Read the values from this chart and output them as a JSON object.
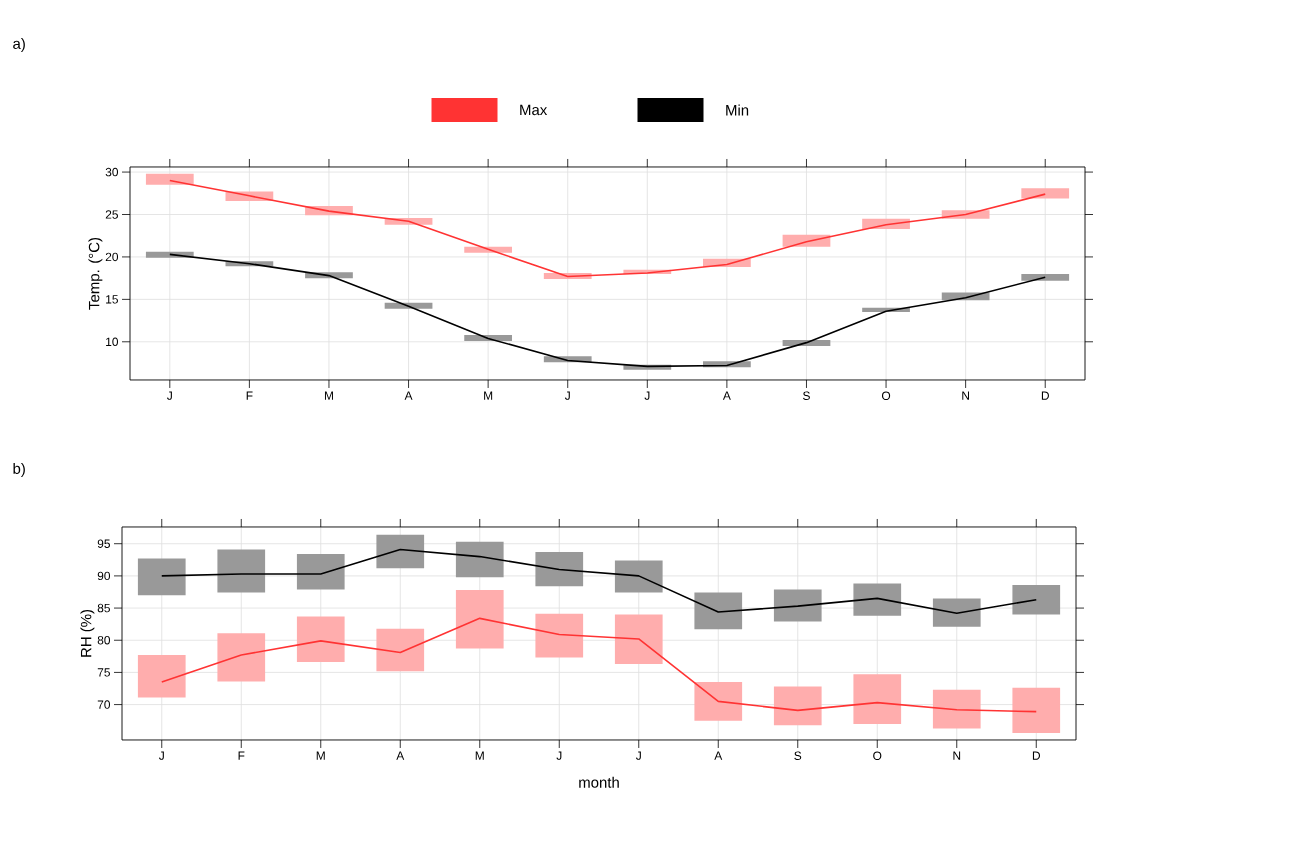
{
  "chart_data": [
    {
      "type": "line",
      "title": "a)",
      "ylabel": "Temp. (°C)",
      "categories": [
        "J",
        "F",
        "M",
        "A",
        "M",
        "J",
        "J",
        "A",
        "S",
        "O",
        "N",
        "D"
      ],
      "ylim": [
        5.5,
        30.6
      ],
      "yticks": [
        10,
        15,
        20,
        25,
        30
      ],
      "grid": true,
      "legend": "top",
      "line_style": "solid",
      "series": [
        {
          "name": "Max",
          "color": "#ff3333",
          "values": [
            29.0,
            27.2,
            25.4,
            24.2,
            20.9,
            17.7,
            18.1,
            19.1,
            21.8,
            23.8,
            25.0,
            27.4
          ],
          "errors": [
            [
              28.5,
              29.8
            ],
            [
              26.6,
              27.7
            ],
            [
              24.9,
              26.0
            ],
            [
              23.8,
              24.6
            ],
            [
              20.5,
              21.2
            ],
            [
              17.4,
              18.1
            ],
            [
              18.0,
              18.5
            ],
            [
              18.8,
              19.8
            ],
            [
              21.2,
              22.6
            ],
            [
              23.3,
              24.5
            ],
            [
              24.5,
              25.5
            ],
            [
              26.9,
              28.1
            ]
          ]
        },
        {
          "name": "Min",
          "color": "#000000",
          "values": [
            20.3,
            19.2,
            17.8,
            14.2,
            10.4,
            7.8,
            7.1,
            7.2,
            9.9,
            13.6,
            15.2,
            17.6
          ],
          "errors": [
            [
              19.9,
              20.6
            ],
            [
              18.9,
              19.5
            ],
            [
              17.5,
              18.2
            ],
            [
              13.9,
              14.6
            ],
            [
              10.1,
              10.8
            ],
            [
              7.6,
              8.3
            ],
            [
              6.7,
              7.3
            ],
            [
              7.0,
              7.7
            ],
            [
              9.5,
              10.2
            ],
            [
              13.5,
              14.0
            ],
            [
              14.9,
              15.8
            ],
            [
              17.2,
              18.0
            ]
          ]
        }
      ]
    },
    {
      "type": "line",
      "title": "b)",
      "xlabel": "month",
      "ylabel": "RH (%)",
      "categories": [
        "J",
        "F",
        "M",
        "A",
        "M",
        "J",
        "J",
        "A",
        "S",
        "O",
        "N",
        "D"
      ],
      "ylim": [
        64.5,
        97.6
      ],
      "yticks": [
        70,
        75,
        80,
        85,
        90,
        95
      ],
      "grid": true,
      "line_style": "solid",
      "series": [
        {
          "color": "#000000",
          "values": [
            90.0,
            90.3,
            90.3,
            94.1,
            93.0,
            91.0,
            90.0,
            84.4,
            85.3,
            86.5,
            84.2,
            86.3
          ],
          "errors": [
            [
              87.0,
              92.7
            ],
            [
              87.4,
              94.1
            ],
            [
              87.9,
              93.4
            ],
            [
              91.2,
              96.4
            ],
            [
              89.8,
              95.3
            ],
            [
              88.4,
              93.7
            ],
            [
              87.4,
              92.4
            ],
            [
              81.7,
              87.4
            ],
            [
              82.9,
              87.9
            ],
            [
              83.8,
              88.8
            ],
            [
              82.1,
              86.5
            ],
            [
              84.0,
              88.6
            ]
          ]
        },
        {
          "color": "#ff3333",
          "values": [
            73.5,
            77.7,
            79.9,
            78.1,
            83.4,
            80.9,
            80.2,
            70.5,
            69.1,
            70.3,
            69.2,
            68.9
          ],
          "errors": [
            [
              71.1,
              77.7
            ],
            [
              73.6,
              81.1
            ],
            [
              76.6,
              83.7
            ],
            [
              75.2,
              81.8
            ],
            [
              78.7,
              87.8
            ],
            [
              77.3,
              84.1
            ],
            [
              76.3,
              84.0
            ],
            [
              67.5,
              73.5
            ],
            [
              66.8,
              72.8
            ],
            [
              67.0,
              74.7
            ],
            [
              66.3,
              72.3
            ],
            [
              65.6,
              72.6
            ]
          ]
        }
      ]
    }
  ]
}
